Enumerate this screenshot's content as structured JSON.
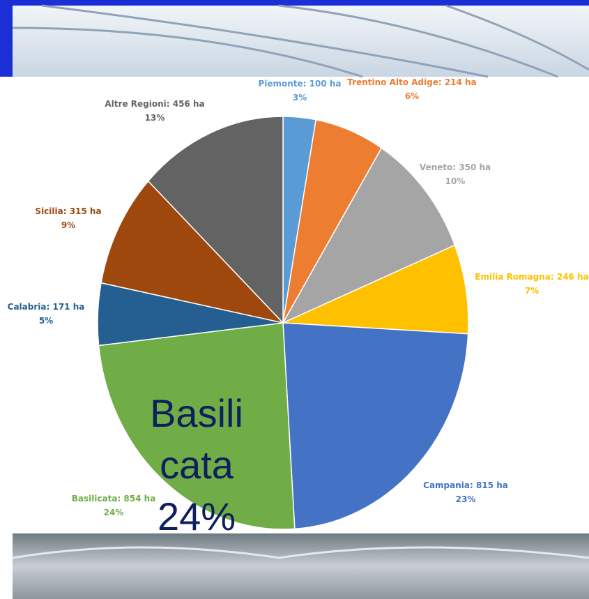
{
  "chart_data": {
    "type": "pie",
    "values": [
      100,
      214,
      350,
      246,
      815,
      854,
      171,
      315,
      456
    ],
    "value_labels": [
      "Piemonte: 100 ha",
      "Trentino Alto Adige: 214 ha",
      "Veneto: 350 ha",
      "Emilia Romagna: 246 ha",
      "Campania: 815 ha",
      "Basilicata: 854 ha",
      "Calabria: 171 ha",
      "Sicilia: 315 ha",
      "Altre Regioni: 456 ha"
    ],
    "percents": [
      3,
      6,
      10,
      7,
      23,
      24,
      5,
      9,
      13
    ],
    "percent_labels": [
      "3%",
      "6%",
      "10%",
      "7%",
      "23%",
      "24%",
      "5%",
      "9%",
      "13%"
    ],
    "colors": [
      "#5b9bd5",
      "#ed7d31",
      "#a5a5a5",
      "#ffc000",
      "#4472c4",
      "#70ad47",
      "#255e91",
      "#9e480e",
      "#636363"
    ],
    "annotation_lines": [
      "Basili",
      "cata",
      "24%"
    ]
  }
}
